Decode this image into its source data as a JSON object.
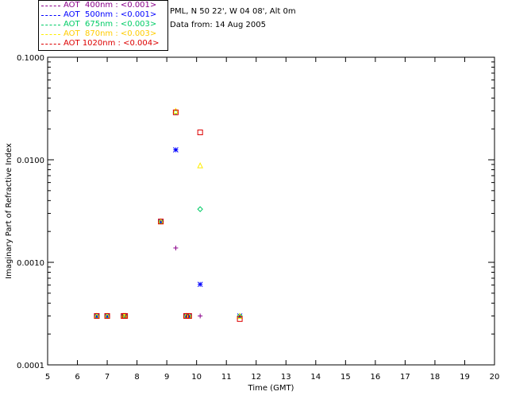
{
  "legend": [
    {
      "label": "AOT  400nm : <0.001>",
      "color": "#8a008a"
    },
    {
      "label": "AOT  500nm : <0.001>",
      "color": "#0000ff"
    },
    {
      "label": "AOT  675nm : <0.003>",
      "color": "#00cc66"
    },
    {
      "label": "AOT  870nm : <0.003>",
      "color": "#ffee00"
    },
    {
      "label": "AOT 1020nm : <0.004>",
      "color": "#dd0000"
    }
  ],
  "info": {
    "site": "PML, N 50 22', W 04 08', Alt 0m",
    "date": "Data from: 14 Aug 2005"
  },
  "chart_data": {
    "type": "scatter",
    "xlabel": "Time (GMT)",
    "ylabel": "Imaginary Part of Refractive Index",
    "xlim": [
      5,
      20
    ],
    "ylim": [
      0.0001,
      0.1
    ],
    "yscale": "log",
    "xticks": [
      5,
      6,
      7,
      8,
      9,
      10,
      11,
      12,
      13,
      14,
      15,
      16,
      17,
      18,
      19,
      20
    ],
    "yticks": [
      {
        "value": 0.0001,
        "label": "0.0001"
      },
      {
        "value": 0.001,
        "label": "0.0010"
      },
      {
        "value": 0.01,
        "label": "0.0100"
      },
      {
        "value": 0.1,
        "label": "0.1000"
      }
    ],
    "series": [
      {
        "name": "AOT  400nm",
        "color": "#8a008a",
        "marker": "plus",
        "x": [
          6.65,
          7.0,
          7.55,
          7.6,
          8.8,
          9.3,
          9.65,
          9.75,
          10.12,
          11.45
        ],
        "y": [
          0.0003,
          0.0003,
          0.0003,
          0.0003,
          0.0025,
          0.00138,
          0.0003,
          0.0003,
          0.0003,
          0.0003
        ]
      },
      {
        "name": "AOT  500nm",
        "color": "#0000ff",
        "marker": "asterisk",
        "x": [
          6.65,
          7.0,
          7.55,
          7.6,
          8.8,
          9.3,
          9.65,
          9.75,
          10.12,
          11.45
        ],
        "y": [
          0.0003,
          0.0003,
          0.0003,
          0.0003,
          0.0025,
          0.0125,
          0.0003,
          0.0003,
          0.00061,
          0.0003
        ]
      },
      {
        "name": "AOT  675nm",
        "color": "#00cc66",
        "marker": "diamond",
        "x": [
          6.65,
          7.0,
          7.55,
          7.6,
          8.8,
          9.3,
          9.65,
          9.75,
          10.12,
          11.45
        ],
        "y": [
          0.0003,
          0.0003,
          0.0003,
          0.0003,
          0.0025,
          0.029,
          0.0003,
          0.0003,
          0.0033,
          0.0003
        ]
      },
      {
        "name": "AOT  870nm",
        "color": "#ffee00",
        "marker": "triangle",
        "x": [
          6.65,
          7.0,
          7.55,
          7.6,
          8.8,
          9.3,
          9.65,
          9.75,
          10.12,
          11.45
        ],
        "y": [
          0.0003,
          0.0003,
          0.0003,
          0.0003,
          0.0025,
          0.03,
          0.0003,
          0.0003,
          0.0088,
          0.0003
        ]
      },
      {
        "name": "AOT 1020nm",
        "color": "#dd0000",
        "marker": "square",
        "x": [
          6.65,
          7.0,
          7.55,
          7.6,
          8.8,
          9.3,
          9.65,
          9.75,
          10.12,
          11.45
        ],
        "y": [
          0.0003,
          0.0003,
          0.0003,
          0.0003,
          0.0025,
          0.029,
          0.0003,
          0.0003,
          0.0185,
          0.00028
        ]
      }
    ]
  }
}
